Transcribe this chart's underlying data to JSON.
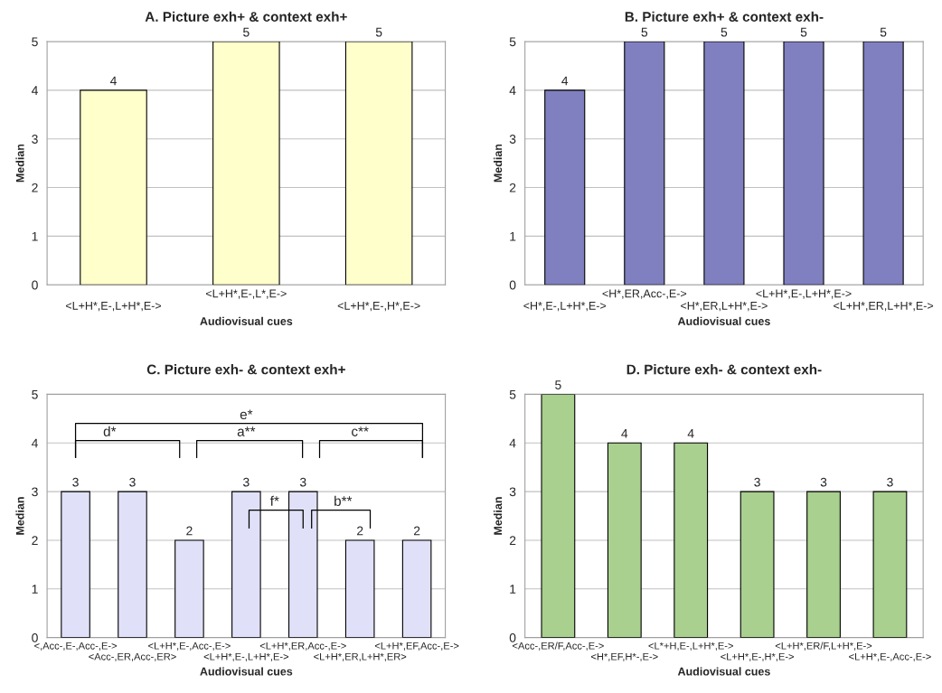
{
  "chart_data": [
    {
      "type": "bar",
      "title": "A. Picture exh+ & context exh+",
      "xlabel": "Audiovisual cues",
      "ylabel": "Median",
      "categories": [
        "<L+H*,E-,L+H*,E->",
        "<L+H*,E-,L*,E->",
        "<L+H*,E-,H*,E->"
      ],
      "values": [
        4,
        5,
        5
      ],
      "color": "#ffffcc",
      "ylim": [
        0,
        5
      ],
      "yticks": [
        0,
        1,
        2,
        3,
        4,
        5
      ],
      "grid": "y",
      "data_labels": true
    },
    {
      "type": "bar",
      "title": "B. Picture exh+ & context exh-",
      "xlabel": "Audiovisual cues",
      "ylabel": "Median",
      "categories": [
        "<H*,E-,L+H*,E->",
        "<H*,ER,Acc-,E->",
        "<H*,ER,L+H*,E->",
        "<L+H*,E-,L+H*,E->",
        "<L+H*,ER,L+H*,E->"
      ],
      "values": [
        4,
        5,
        5,
        5,
        5
      ],
      "color": "#8080c0",
      "ylim": [
        0,
        5
      ],
      "yticks": [
        0,
        1,
        2,
        3,
        4,
        5
      ],
      "grid": "y",
      "data_labels": true
    },
    {
      "type": "bar",
      "title": "C. Picture exh- & context exh+",
      "xlabel": "Audiovisual cues",
      "ylabel": "Median",
      "categories": [
        "<,Acc-,E-,Acc-,E->",
        "<Acc-,ER,Acc-,ER>",
        "<L+H*,E-,Acc-,E->",
        "<L+H*,E-,L+H*,E->",
        "<L+H*,ER,Acc-,E->",
        "<L+H*,ER,L+H*,ER>",
        "<L+H*,EF,Acc-,E->"
      ],
      "values": [
        3,
        3,
        2,
        3,
        3,
        2,
        2
      ],
      "color": "#e0e0f8",
      "ylim": [
        0,
        5
      ],
      "yticks": [
        0,
        1,
        2,
        3,
        4,
        5
      ],
      "grid": "y",
      "data_labels": true,
      "annotations": [
        "e*",
        "d*",
        "a**",
        "c**",
        "f*",
        "b**"
      ]
    },
    {
      "type": "bar",
      "title": "D. Picture exh- & context exh-",
      "xlabel": "Audiovisual cues",
      "ylabel": "Median",
      "categories": [
        "<Acc-,ER/F,Acc-,E->",
        "<H*,EF,H*-,E->",
        "<L*+H,E-,L+H*,E->",
        "<L+H*,E-,H*,E->",
        "<L+H*,ER/F,L+H*,E->",
        "<L+H*,E-,Acc-,E->"
      ],
      "values": [
        5,
        4,
        4,
        3,
        3,
        3
      ],
      "color": "#a9d08e",
      "ylim": [
        0,
        5
      ],
      "yticks": [
        0,
        1,
        2,
        3,
        4,
        5
      ],
      "grid": "y",
      "data_labels": true
    }
  ]
}
